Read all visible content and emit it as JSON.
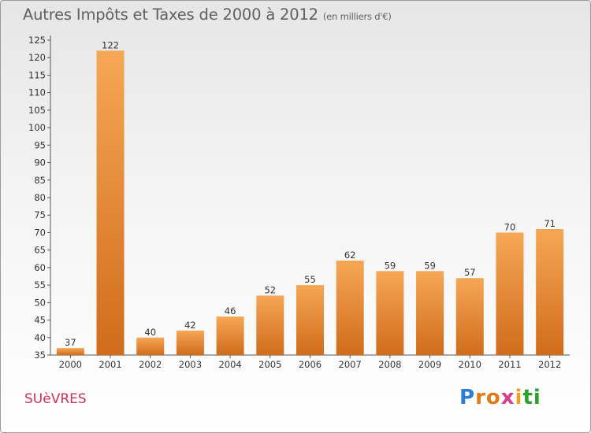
{
  "title": "Autres Impôts et Taxes de 2000 à 2012",
  "subtitle": "(en milliers d'€)",
  "commune": "SUèVRES",
  "logo": {
    "letters": [
      "P",
      "r",
      "o",
      "x",
      "i",
      "t",
      "i"
    ],
    "colors": [
      "#2a7fd4",
      "#e07b1a",
      "#e07b1a",
      "#d63b8c",
      "#f0a020",
      "#2ca02c",
      "#2ca02c"
    ]
  },
  "colors": {
    "bar_light": "#f6a755",
    "bar_dark": "#d06c1b",
    "text": "#606060",
    "commune": "#cc3355"
  },
  "chart_data": {
    "type": "bar",
    "title": "Autres Impôts et Taxes de 2000 à 2012",
    "subtitle": "(en milliers d'€)",
    "categories": [
      "2000",
      "2001",
      "2002",
      "2003",
      "2004",
      "2005",
      "2006",
      "2007",
      "2008",
      "2009",
      "2010",
      "2011",
      "2012"
    ],
    "values": [
      37,
      122,
      40,
      42,
      46,
      52,
      55,
      62,
      59,
      59,
      57,
      70,
      71
    ],
    "ylim": [
      35,
      125
    ],
    "yticks": [
      35,
      40,
      45,
      50,
      55,
      60,
      65,
      70,
      75,
      80,
      85,
      90,
      95,
      100,
      105,
      110,
      115,
      120,
      125
    ],
    "grid": false
  }
}
